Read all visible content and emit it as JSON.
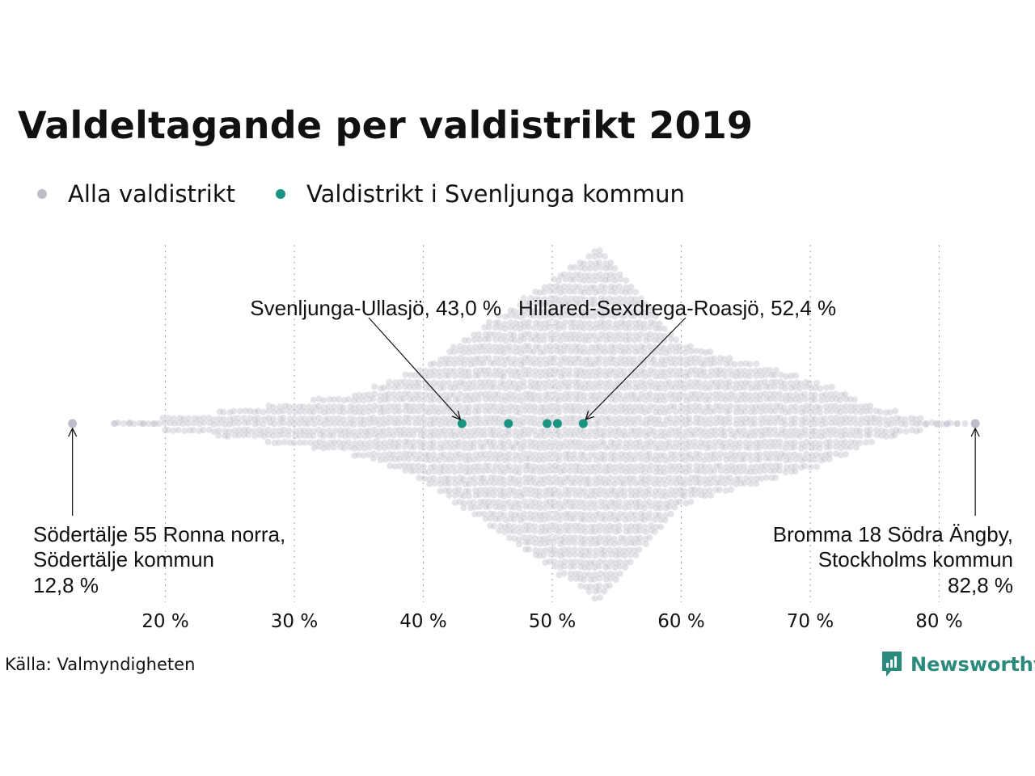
{
  "chart_data": {
    "type": "scatter",
    "subtype": "beeswarm",
    "title": "Valdeltagande per valdistrikt 2019",
    "xlim": [
      12,
      84
    ],
    "x_ticks": [
      20,
      30,
      40,
      50,
      60,
      70,
      80
    ],
    "x_tick_labels": [
      "20 %",
      "30 %",
      "40 %",
      "50 %",
      "60 %",
      "70 %",
      "80 %"
    ],
    "grid": "vertical dotted",
    "legend_placement": "top-left",
    "series": [
      {
        "name": "Alla valdistrikt",
        "color": "#bdbdc8",
        "distribution_peak": 53.8,
        "min": 12.8,
        "max": 82.8
      },
      {
        "name": "Valdistrikt i Svenljunga kommun",
        "color": "#1a9482",
        "values": [
          43.0,
          46.6,
          49.6,
          50.4,
          52.4
        ]
      }
    ],
    "annotations": [
      {
        "id": "ullasjo",
        "text": "Svenljunga-Ullasjö, 43,0 %",
        "x": 43.0
      },
      {
        "id": "roasjo",
        "text": "Hillared-Sexdrega-Roasjö, 52,4 %",
        "x": 52.4
      },
      {
        "id": "min",
        "lines": [
          "Södertälje 55 Ronna norra,",
          "Södertälje kommun",
          "12,8 %"
        ],
        "x": 12.8
      },
      {
        "id": "max",
        "lines": [
          "Bromma 18 Södra Ängby,",
          "Stockholms kommun",
          "82,8 %"
        ],
        "x": 82.8
      }
    ]
  },
  "footer": {
    "source": "Källa: Valmyndigheten",
    "brand": "Newsworthy"
  }
}
